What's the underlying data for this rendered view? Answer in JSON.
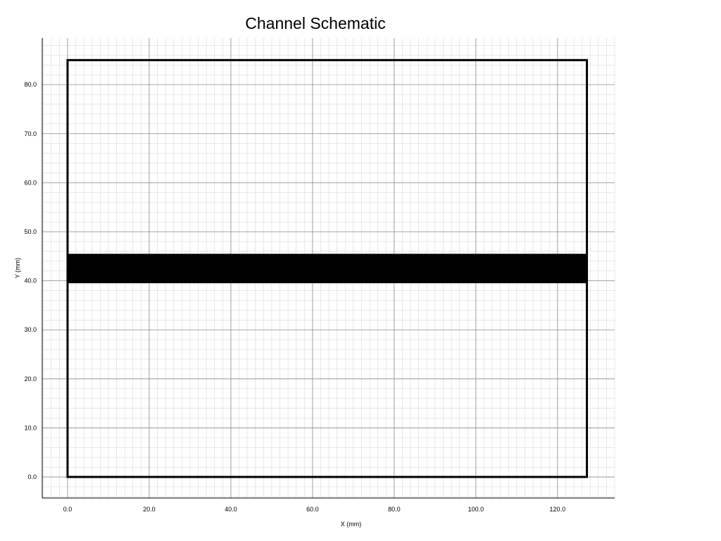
{
  "chart_data": {
    "type": "schematic",
    "title": "Channel Schematic",
    "xlabel": "X (mm)",
    "ylabel": "Y (mm)",
    "xlim": [
      -6.2,
      134.0
    ],
    "ylim": [
      -4.3,
      89.5
    ],
    "x_ticks": [
      0,
      20,
      40,
      60,
      80,
      100,
      120
    ],
    "y_ticks": [
      0,
      10,
      20,
      30,
      40,
      50,
      60,
      70,
      80
    ],
    "x_tick_labels": [
      "0.0",
      "20.0",
      "40.0",
      "60.0",
      "80.0",
      "100.0",
      "120.0"
    ],
    "y_tick_labels": [
      "0.0",
      "10.0",
      "20.0",
      "30.0",
      "40.0",
      "50.0",
      "60.0",
      "70.0",
      "80.0"
    ],
    "major_grid_step": 20,
    "minor_grid_step": 2,
    "grid": true,
    "outline": {
      "x": [
        0,
        127.2
      ],
      "y": [
        0,
        85
      ]
    },
    "channel": {
      "x": [
        0,
        127.2
      ],
      "y": [
        39.5,
        45.5
      ]
    },
    "colors": {
      "outline": "#000000",
      "channel": "#000000",
      "major_grid": "#8c8c8c",
      "minor_grid": "#d9d9d9"
    }
  }
}
